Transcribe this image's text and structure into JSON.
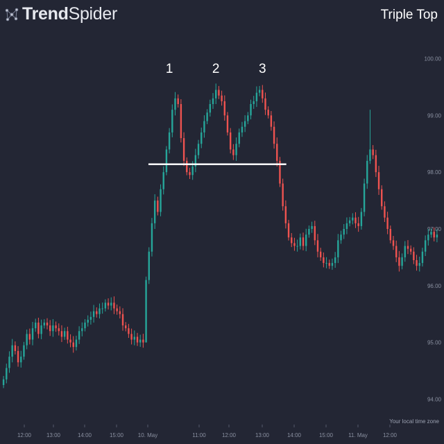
{
  "brand": {
    "name_bold": "Trend",
    "name_light": "Spider",
    "logo_icon": "trendspider-network-icon"
  },
  "title": "Triple Top",
  "footer": {
    "timezone": "Your local time zone"
  },
  "colors": {
    "background": "#232634",
    "up": "#26a69a",
    "down": "#ef5350",
    "neckline": "#ffffff"
  },
  "chart_data": {
    "type": "candlestick",
    "title": "Triple Top",
    "x_ticks": [
      "12:00",
      "13:00",
      "14:00",
      "15:00",
      "10. May",
      "11:00",
      "12:00",
      "13:00",
      "14:00",
      "15:00",
      "11. May",
      "12:00"
    ],
    "y_ticks": [
      "94.00",
      "95.00",
      "96.00",
      "97.00",
      "98.00",
      "99.00",
      "100.00"
    ],
    "ylim": [
      93.7,
      100.3
    ],
    "annotations": [
      {
        "text": "1",
        "candle": 57,
        "price": 99.75
      },
      {
        "text": "2",
        "candle": 73,
        "price": 99.75
      },
      {
        "text": "3",
        "candle": 89,
        "price": 99.75
      }
    ],
    "neckline": {
      "price": 98.14,
      "from_candle": 51,
      "to_candle": 96
    },
    "series": [
      {
        "name": "",
        "close": [
          94.35,
          94.55,
          94.75,
          94.95,
          94.85,
          94.65,
          94.75,
          94.95,
          95.15,
          95.05,
          95.25,
          95.35,
          95.15,
          95.3,
          95.35,
          95.3,
          95.2,
          95.3,
          95.25,
          95.2,
          95.1,
          95.2,
          95.05,
          95.0,
          94.92,
          95.05,
          95.2,
          95.25,
          95.35,
          95.4,
          95.45,
          95.55,
          95.5,
          95.6,
          95.6,
          95.7,
          95.65,
          95.7,
          95.6,
          95.55,
          95.5,
          95.3,
          95.25,
          95.15,
          95.05,
          95.1,
          95.0,
          95.05,
          95.0,
          96.1,
          96.6,
          97.1,
          97.5,
          97.3,
          97.7,
          98.0,
          98.4,
          98.7,
          99.1,
          99.3,
          99.2,
          98.6,
          98.2,
          98.0,
          97.95,
          98.1,
          98.3,
          98.5,
          98.7,
          98.9,
          99.05,
          99.2,
          99.3,
          99.45,
          99.35,
          99.25,
          99.0,
          98.7,
          98.4,
          98.3,
          98.5,
          98.7,
          98.8,
          98.9,
          99.0,
          99.2,
          99.25,
          99.4,
          99.45,
          99.3,
          99.1,
          99.0,
          98.8,
          98.5,
          98.2,
          97.8,
          97.4,
          97.1,
          96.85,
          96.75,
          96.7,
          96.7,
          96.85,
          96.7,
          96.9,
          97.0,
          97.05,
          96.8,
          96.6,
          96.5,
          96.4,
          96.4,
          96.35,
          96.4,
          96.5,
          96.8,
          96.9,
          97.0,
          97.1,
          97.15,
          97.2,
          97.1,
          97.05,
          97.3,
          97.8,
          98.2,
          98.4,
          98.3,
          98.0,
          97.7,
          97.4,
          97.2,
          97.0,
          96.8,
          96.7,
          96.5,
          96.35,
          96.5,
          96.7,
          96.65,
          96.6,
          96.45,
          96.35,
          96.4,
          96.6,
          96.8,
          96.9,
          96.95,
          96.85,
          96.9
        ]
      }
    ]
  }
}
